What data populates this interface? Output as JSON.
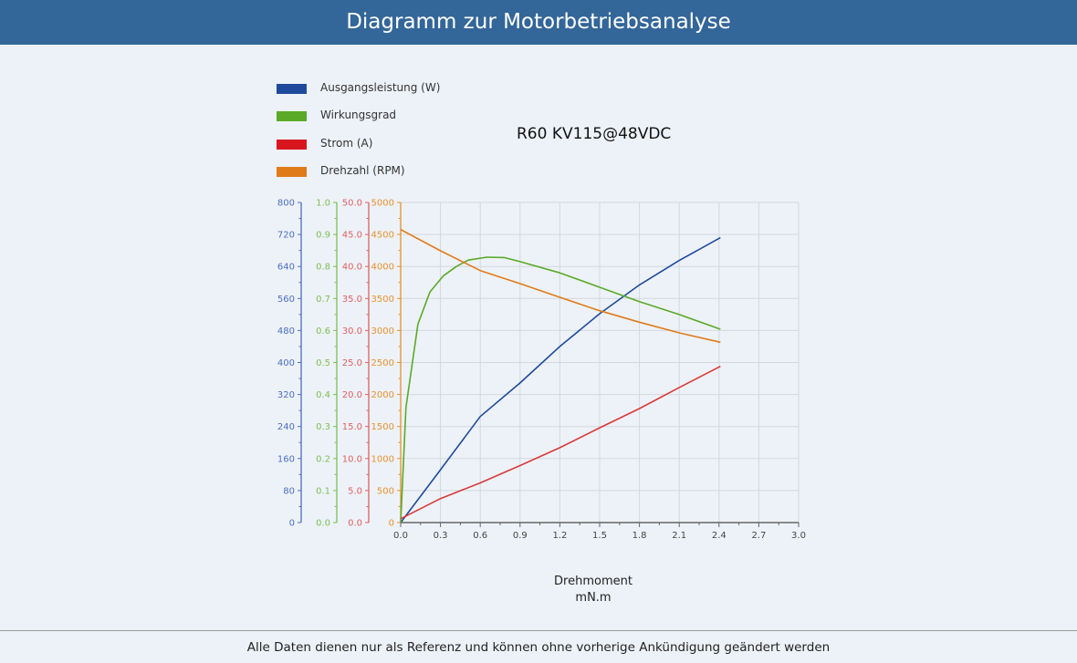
{
  "header": {
    "title": "Diagramm zur Motorbetriebsanalyse"
  },
  "footer": {
    "text": "Alle Daten dienen nur als Referenz und können ohne vorherige Ankündigung geändert werden"
  },
  "chart_data": {
    "type": "line",
    "title": "R60 KV115@48VDC",
    "xlabel": "Drehmoment",
    "xunit": "mN.m",
    "xlim": [
      0,
      3.0
    ],
    "xticks": [
      "0.0",
      "0.3",
      "0.6",
      "0.9",
      "1.2",
      "1.5",
      "1.8",
      "2.1",
      "2.4",
      "2.7",
      "3.0"
    ],
    "grid": true,
    "legend_position": "top-left",
    "series": [
      {
        "name": "Ausgangsleistung (W)",
        "color": "#1f4a9c",
        "axis_color": "#4a6fbf",
        "ylim": [
          0,
          800
        ],
        "yticks": [
          "0",
          "80",
          "160",
          "240",
          "320",
          "400",
          "480",
          "560",
          "640",
          "720",
          "800"
        ],
        "x": [
          0,
          0.3,
          0.6,
          0.9,
          1.2,
          1.5,
          1.8,
          2.1,
          2.41
        ],
        "y": [
          0,
          132,
          265,
          349,
          440,
          522,
          594,
          655,
          712
        ]
      },
      {
        "name": "Wirkungsgrad",
        "color": "#5aaa28",
        "axis_color": "#7cbf52",
        "ylim": [
          0,
          1.0
        ],
        "yticks": [
          "0.0",
          "0.1",
          "0.2",
          "0.3",
          "0.4",
          "0.5",
          "0.6",
          "0.7",
          "0.8",
          "0.9",
          "1.0"
        ],
        "x": [
          0,
          0.04,
          0.13,
          0.22,
          0.32,
          0.42,
          0.51,
          0.65,
          0.78,
          0.9,
          1.2,
          1.5,
          1.8,
          2.1,
          2.41
        ],
        "y": [
          0,
          0.36,
          0.62,
          0.72,
          0.77,
          0.8,
          0.82,
          0.829,
          0.828,
          0.815,
          0.78,
          0.735,
          0.69,
          0.65,
          0.604
        ]
      },
      {
        "name": "Strom (A)",
        "color": "#d93a3a",
        "axis_color": "#e06060",
        "ylim": [
          0,
          50
        ],
        "yticks": [
          "0.0",
          "5.0",
          "10.0",
          "15.0",
          "20.0",
          "25.0",
          "30.0",
          "35.0",
          "40.0",
          "45.0",
          "50.0"
        ],
        "x": [
          0,
          0.3,
          0.6,
          0.9,
          1.2,
          1.5,
          1.8,
          2.1,
          2.41
        ],
        "y": [
          0.6,
          3.75,
          6.2,
          8.9,
          11.7,
          14.8,
          17.8,
          21.1,
          24.4
        ]
      },
      {
        "name": "Drehzahl (RPM)",
        "color": "#e07b1a",
        "axis_color": "#e8902e",
        "ylim": [
          0,
          5000
        ],
        "yticks": [
          "0",
          "500",
          "1000",
          "1500",
          "2000",
          "2500",
          "3000",
          "3500",
          "4000",
          "4500",
          "5000"
        ],
        "x": [
          0,
          0.3,
          0.6,
          0.9,
          1.2,
          1.5,
          1.8,
          2.1,
          2.41
        ],
        "y": [
          4577,
          4245,
          3936,
          3732,
          3519,
          3309,
          3130,
          2963,
          2816
        ]
      }
    ]
  }
}
